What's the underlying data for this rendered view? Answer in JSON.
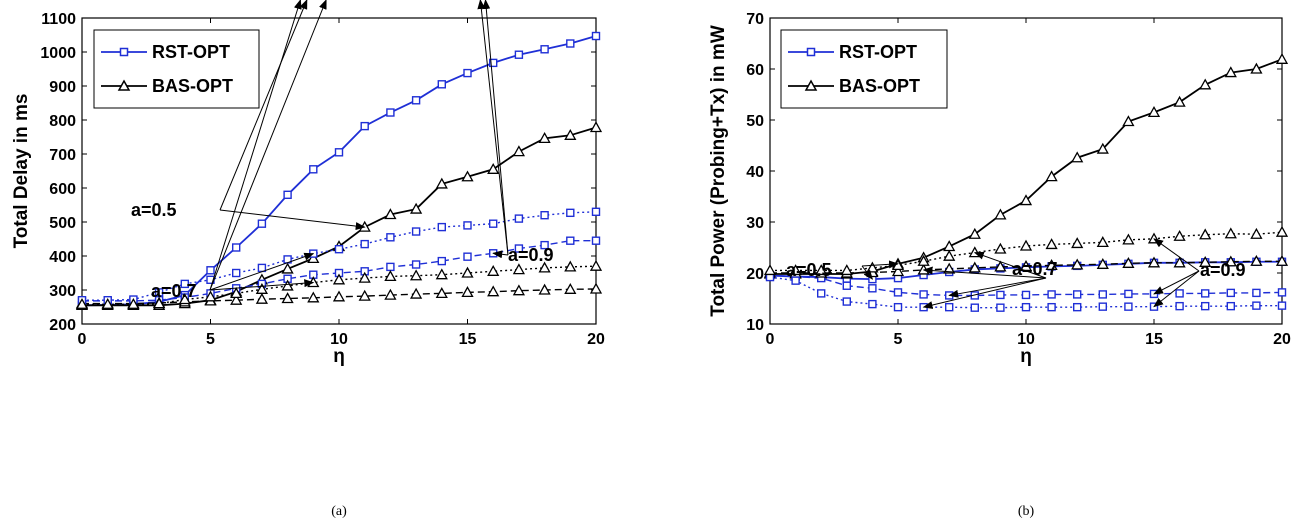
{
  "chart_data": [
    {
      "type": "line",
      "caption": "(a)",
      "xlabel": "η",
      "ylabel": "Total Delay in ms",
      "xlim": [
        0,
        20
      ],
      "ylim": [
        200,
        1100
      ],
      "xticks": [
        0,
        5,
        10,
        15,
        20
      ],
      "yticks": [
        200,
        300,
        400,
        500,
        600,
        700,
        800,
        900,
        1000,
        1100
      ],
      "legend": {
        "placement": "top-left",
        "entries": [
          "RST-OPT",
          "BAS-OPT"
        ]
      },
      "grid": false,
      "x": [
        0,
        1,
        2,
        3,
        4,
        5,
        6,
        7,
        8,
        9,
        10,
        11,
        12,
        13,
        14,
        15,
        16,
        17,
        18,
        19,
        20
      ],
      "series": [
        {
          "name": "RST-OPT",
          "a": "0.5",
          "color": "#1f2fd6",
          "dash": "solid",
          "marker": "square",
          "values": [
            255,
            256,
            258,
            265,
            285,
            358,
            425,
            495,
            580,
            655,
            705,
            782,
            822,
            858,
            905,
            938,
            968,
            992,
            1008,
            1025,
            1047
          ]
        },
        {
          "name": "BAS-OPT",
          "a": "0.5",
          "color": "#000000",
          "dash": "solid",
          "marker": "triangle",
          "values": [
            255,
            255,
            255,
            255,
            260,
            270,
            295,
            330,
            362,
            393,
            428,
            485,
            522,
            538,
            612,
            633,
            655,
            707,
            746,
            755,
            778
          ]
        },
        {
          "a": "0.7",
          "color": "#1f2fd6",
          "dash": "dashed",
          "marker": "square",
          "values": [
            268,
            268,
            268,
            270,
            278,
            290,
            305,
            318,
            333,
            345,
            350,
            355,
            368,
            375,
            385,
            398,
            408,
            422,
            432,
            445,
            445
          ]
        },
        {
          "a": "0.7",
          "color": "#000000",
          "dash": "dashed",
          "marker": "triangle",
          "values": [
            260,
            260,
            260,
            262,
            265,
            268,
            270,
            273,
            275,
            277,
            280,
            282,
            285,
            288,
            290,
            293,
            295,
            298,
            300,
            302,
            303
          ]
        },
        {
          "a": "0.9",
          "color": "#1f2fd6",
          "dash": "dotted",
          "marker": "square",
          "values": [
            270,
            270,
            272,
            293,
            318,
            330,
            350,
            365,
            390,
            407,
            420,
            435,
            455,
            472,
            485,
            490,
            495,
            510,
            520,
            527,
            530
          ]
        },
        {
          "a": "0.9",
          "color": "#000000",
          "dash": "dotted",
          "marker": "triangle",
          "values": [
            258,
            258,
            258,
            260,
            272,
            280,
            290,
            302,
            312,
            322,
            330,
            335,
            340,
            342,
            345,
            350,
            355,
            360,
            365,
            368,
            370
          ]
        }
      ],
      "annotations": [
        "a=0.5",
        "a=0.7",
        "a=0.9"
      ]
    },
    {
      "type": "line",
      "caption": "(b)",
      "xlabel": "η",
      "ylabel": "Total Power (Probing+Tx) in mW",
      "xlim": [
        0,
        20
      ],
      "ylim": [
        10,
        70
      ],
      "xticks": [
        0,
        5,
        10,
        15,
        20
      ],
      "yticks": [
        10,
        20,
        30,
        40,
        50,
        60,
        70
      ],
      "legend": {
        "placement": "top-left",
        "entries": [
          "RST-OPT",
          "BAS-OPT"
        ]
      },
      "grid": false,
      "x": [
        0,
        1,
        2,
        3,
        4,
        5,
        6,
        7,
        8,
        9,
        10,
        11,
        12,
        13,
        14,
        15,
        16,
        17,
        18,
        19,
        20
      ],
      "series": [
        {
          "name": "RST-OPT",
          "a": "0.5",
          "color": "#1f2fd6",
          "dash": "solid",
          "marker": "square",
          "values": [
            19.5,
            19.3,
            19.2,
            18.9,
            18.8,
            19.0,
            19.6,
            20.2,
            20.7,
            20.9,
            21.1,
            21.3,
            21.4,
            21.6,
            21.8,
            22.0,
            22.0,
            22.1,
            22.1,
            22.2,
            22.2
          ]
        },
        {
          "name": "BAS-OPT",
          "a": "0.5",
          "color": "#000000",
          "dash": "solid",
          "marker": "triangle",
          "values": [
            19.8,
            19.8,
            19.8,
            19.8,
            20.3,
            21.8,
            23.0,
            25.2,
            27.6,
            31.4,
            34.2,
            38.9,
            42.6,
            44.3,
            49.7,
            51.5,
            53.5,
            56.9,
            59.3,
            60.0,
            61.9
          ]
        },
        {
          "a": "0.7",
          "color": "#1f2fd6",
          "dash": "dashed",
          "marker": "square",
          "values": [
            19.5,
            19.3,
            19.0,
            17.5,
            17.0,
            16.2,
            15.8,
            15.6,
            15.6,
            15.7,
            15.7,
            15.8,
            15.8,
            15.8,
            15.9,
            15.9,
            16.0,
            16.0,
            16.1,
            16.1,
            16.2
          ]
        },
        {
          "a": "0.7",
          "color": "#000000",
          "dash": "dashed",
          "marker": "triangle",
          "values": [
            20.0,
            20.0,
            20.0,
            20.0,
            20.1,
            20.3,
            20.6,
            20.8,
            21.0,
            21.2,
            21.3,
            21.5,
            21.6,
            21.7,
            21.9,
            22.0,
            22.0,
            22.1,
            22.2,
            22.3,
            22.3
          ]
        },
        {
          "a": "0.9",
          "color": "#1f2fd6",
          "dash": "dotted",
          "marker": "square",
          "values": [
            19.2,
            18.5,
            16.0,
            14.4,
            13.9,
            13.3,
            13.3,
            13.3,
            13.2,
            13.2,
            13.3,
            13.3,
            13.3,
            13.4,
            13.4,
            13.4,
            13.5,
            13.5,
            13.5,
            13.6,
            13.6
          ]
        },
        {
          "a": "0.9",
          "color": "#000000",
          "dash": "dotted",
          "marker": "triangle",
          "values": [
            20.5,
            20.5,
            20.5,
            20.5,
            21.0,
            21.5,
            22.3,
            23.3,
            24.0,
            24.7,
            25.3,
            25.6,
            25.8,
            26.0,
            26.5,
            26.7,
            27.2,
            27.5,
            27.7,
            27.6,
            28.0
          ]
        }
      ],
      "annotations": [
        "a=0.5",
        "a=0.7",
        "a=0.9"
      ]
    }
  ]
}
